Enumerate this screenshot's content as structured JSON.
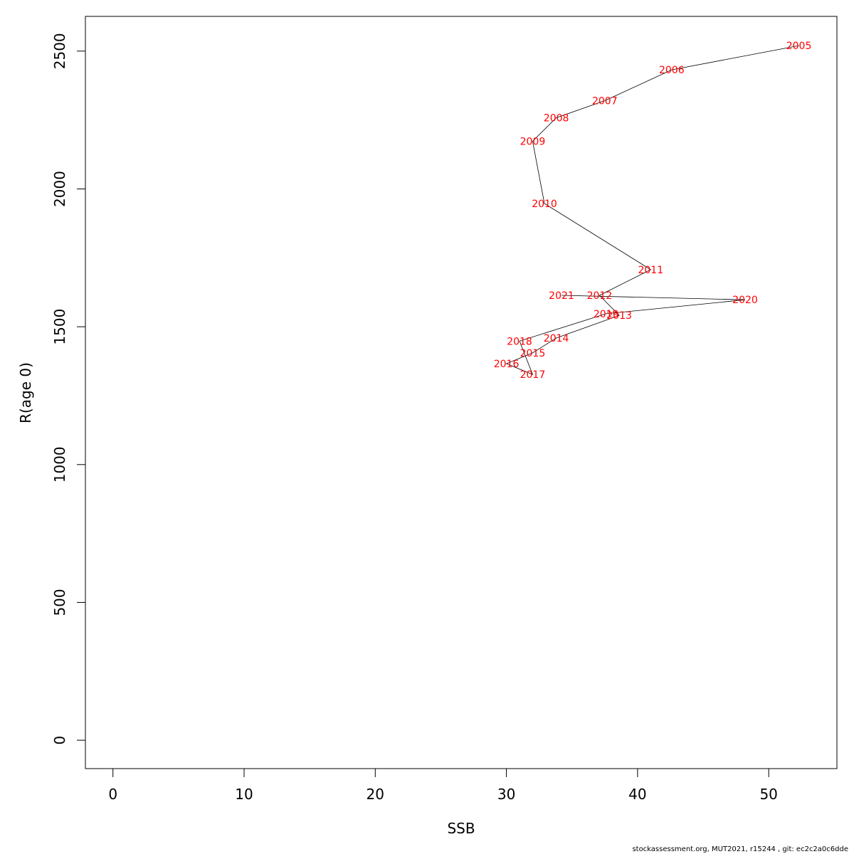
{
  "chart_data": {
    "type": "line",
    "xlabel": "SSB",
    "ylabel": "R(age 0)",
    "xlim": [
      -2.1,
      55.2
    ],
    "ylim": [
      -103,
      2626
    ],
    "x_ticks": [
      0,
      10,
      20,
      30,
      40,
      50
    ],
    "y_ticks": [
      0,
      500,
      1000,
      1500,
      2000,
      2500
    ],
    "x_tick_labels": [
      "0",
      "10",
      "20",
      "30",
      "40",
      "50"
    ],
    "y_tick_labels": [
      "0",
      "500",
      "1000",
      "1500",
      "2000",
      "2500"
    ],
    "grid": false,
    "label_color": "#ff0000",
    "line_color": "#000000",
    "points": [
      {
        "label": "2005",
        "x": 52.3,
        "y": 2520
      },
      {
        "label": "2006",
        "x": 42.6,
        "y": 2432
      },
      {
        "label": "2007",
        "x": 37.5,
        "y": 2320
      },
      {
        "label": "2008",
        "x": 33.8,
        "y": 2258
      },
      {
        "label": "2009",
        "x": 32.0,
        "y": 2173
      },
      {
        "label": "2010",
        "x": 32.9,
        "y": 1947
      },
      {
        "label": "2011",
        "x": 41.0,
        "y": 1707
      },
      {
        "label": "2012",
        "x": 37.1,
        "y": 1614
      },
      {
        "label": "2013",
        "x": 38.6,
        "y": 1541
      },
      {
        "label": "2014",
        "x": 33.8,
        "y": 1459
      },
      {
        "label": "2015",
        "x": 32.0,
        "y": 1405
      },
      {
        "label": "2016",
        "x": 30.0,
        "y": 1366
      },
      {
        "label": "2017",
        "x": 32.0,
        "y": 1327
      },
      {
        "label": "2018",
        "x": 31.0,
        "y": 1448
      },
      {
        "label": "2019",
        "x": 37.6,
        "y": 1547
      },
      {
        "label": "2020",
        "x": 48.2,
        "y": 1598
      },
      {
        "label": "2021",
        "x": 34.2,
        "y": 1614
      }
    ]
  },
  "footer": "stockassessment.org, MUT2021, r15244 , git: ec2c2a0c6dde"
}
